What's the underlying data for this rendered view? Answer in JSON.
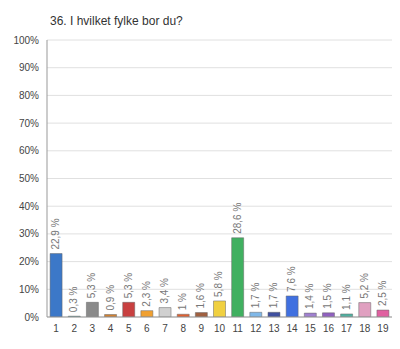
{
  "chart_data": {
    "type": "bar",
    "title": "36. I hvilket fylke bor du?",
    "categories": [
      "1",
      "2",
      "3",
      "4",
      "5",
      "6",
      "7",
      "8",
      "9",
      "10",
      "11",
      "12",
      "13",
      "14",
      "15",
      "16",
      "17",
      "18",
      "19"
    ],
    "values": [
      22.9,
      0.3,
      5.3,
      0.9,
      5.3,
      2.3,
      3.4,
      1,
      1.6,
      5.8,
      28.6,
      1.7,
      1.7,
      7.6,
      1.4,
      1.5,
      1.1,
      5.2,
      2.5
    ],
    "value_labels": [
      "22,9 %",
      "0,3 %",
      "5,3 %",
      "0,9 %",
      "5,3 %",
      "2,3 %",
      "3,4 %",
      "1 %",
      "1,6 %",
      "5,8 %",
      "28,6 %",
      "1,7 %",
      "1,7 %",
      "7,6 %",
      "1,4 %",
      "1,5 %",
      "1,1 %",
      "5,2 %",
      "2,5 %"
    ],
    "colors": [
      "#3c78c8",
      "#4a9a9a",
      "#8a8a8a",
      "#d08030",
      "#c84040",
      "#f0a030",
      "#d0d0d0",
      "#e06030",
      "#a06040",
      "#f0d040",
      "#40b060",
      "#80b8e8",
      "#4050a0",
      "#4070e0",
      "#a080d0",
      "#9060c0",
      "#50b0a0",
      "#e0a0c0",
      "#e060a0"
    ],
    "ylim": [
      0,
      100
    ],
    "yticks": [
      {
        "value": 0,
        "label": "0%"
      },
      {
        "value": 10,
        "label": "10%"
      },
      {
        "value": 20,
        "label": "20%"
      },
      {
        "value": 30,
        "label": "30%"
      },
      {
        "value": 40,
        "label": "40%"
      },
      {
        "value": 50,
        "label": "50%"
      },
      {
        "value": 60,
        "label": "60%"
      },
      {
        "value": 70,
        "label": "70%"
      },
      {
        "value": 80,
        "label": "80%"
      },
      {
        "value": 90,
        "label": "90%"
      },
      {
        "value": 100,
        "label": "100%"
      }
    ],
    "grid": true,
    "data_labels": true
  }
}
